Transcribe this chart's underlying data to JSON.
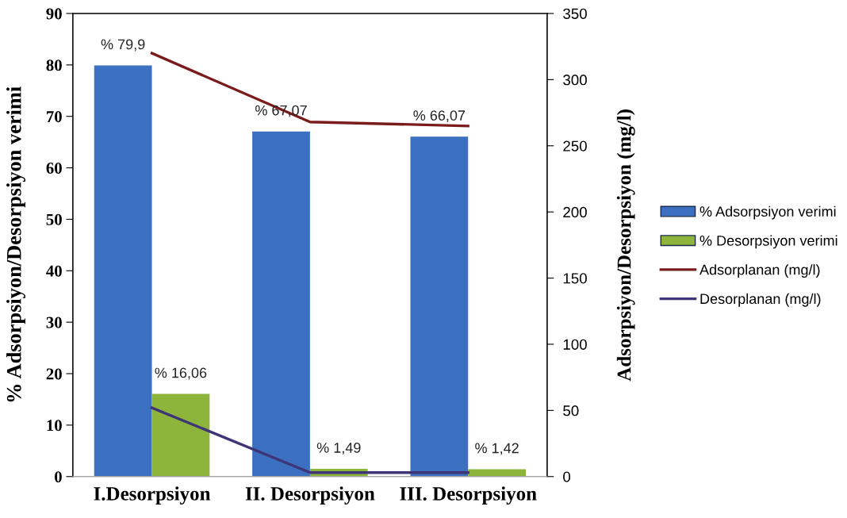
{
  "chart_data": {
    "type": "bar",
    "categories": [
      "I.Desorpsiyon",
      "II. Desorpsiyon",
      "III. Desorpsiyon"
    ],
    "ylabel": "% Adsorpsiyon/Desorpsiyon verimi",
    "y2label": "Adsorpsiyon/Desorpsiyon (mg/l)",
    "series": [
      {
        "name": "% Adsorpsiyon verimi",
        "color": "#3a70bf",
        "values": [
          79.9,
          67.07,
          66.07
        ],
        "value_labels": [
          "% 79,9",
          "% 67,07",
          "% 66,07"
        ]
      },
      {
        "name": "% Desorpsiyon verimi",
        "color": "#8db53c",
        "values": [
          16.06,
          1.49,
          1.42
        ],
        "value_labels": [
          "% 16,06",
          "% 1,49",
          "% 1,42"
        ]
      },
      {
        "name": "Adsorplanan (mg/l)",
        "type": "line",
        "axis": "y2",
        "color": "#7a1c1c",
        "values": [
          320,
          268,
          265
        ]
      },
      {
        "name": "Desorplanan (mg/l)",
        "type": "line",
        "axis": "y2",
        "color": "#3f3478",
        "values": [
          52,
          3,
          3
        ]
      }
    ],
    "ylim": [
      0,
      90
    ],
    "yticks": [
      0,
      10,
      20,
      30,
      40,
      50,
      60,
      70,
      80,
      90
    ],
    "y2lim": [
      0,
      350
    ],
    "y2ticks": [
      0,
      50,
      100,
      150,
      200,
      250,
      300,
      350
    ],
    "legend": "right",
    "grid": false
  }
}
